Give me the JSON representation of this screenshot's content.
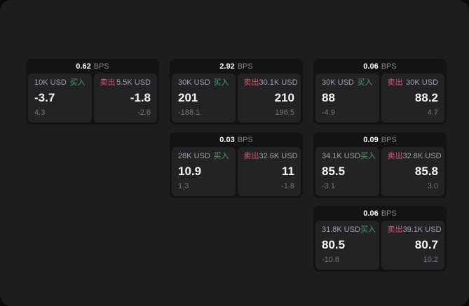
{
  "labels": {
    "bps_unit": "BPS",
    "buy": "买入",
    "sell": "卖出"
  },
  "colors": {
    "buy_green": "#4f9e65",
    "sell_red": "#d8566d",
    "page_bg": "#1d1d1f",
    "card_bg": "#131314",
    "panel_bg": "#232326"
  },
  "cards": [
    {
      "bps": "0.62",
      "buy": {
        "amount": "10K USD",
        "price": "-3.7",
        "change": "4.3"
      },
      "sell": {
        "amount": "5.5K USD",
        "price": "-1.8",
        "change": "-2.6"
      }
    },
    {
      "bps": "2.92",
      "buy": {
        "amount": "30K USD",
        "price": "201",
        "change": "-188.1"
      },
      "sell": {
        "amount": "30.1K USD",
        "price": "210",
        "change": "196.5"
      }
    },
    {
      "bps": "0.06",
      "buy": {
        "amount": "30K USD",
        "price": "88",
        "change": "-4.9"
      },
      "sell": {
        "amount": "30K USD",
        "price": "88.2",
        "change": "4.7"
      }
    },
    {
      "bps": "0.03",
      "buy": {
        "amount": "28K USD",
        "price": "10.9",
        "change": "1.3"
      },
      "sell": {
        "amount": "32.6K USD",
        "price": "11",
        "change": "-1.8"
      }
    },
    {
      "bps": "0.09",
      "buy": {
        "amount": "34.1K USD",
        "price": "85.5",
        "change": "-3.1"
      },
      "sell": {
        "amount": "32.8K USD",
        "price": "85.8",
        "change": "3.0"
      }
    },
    {
      "bps": "0.06",
      "buy": {
        "amount": "31.8K USD",
        "price": "80.5",
        "change": "-10.8"
      },
      "sell": {
        "amount": "39.1K USD",
        "price": "80.7",
        "change": "10.2"
      }
    }
  ]
}
